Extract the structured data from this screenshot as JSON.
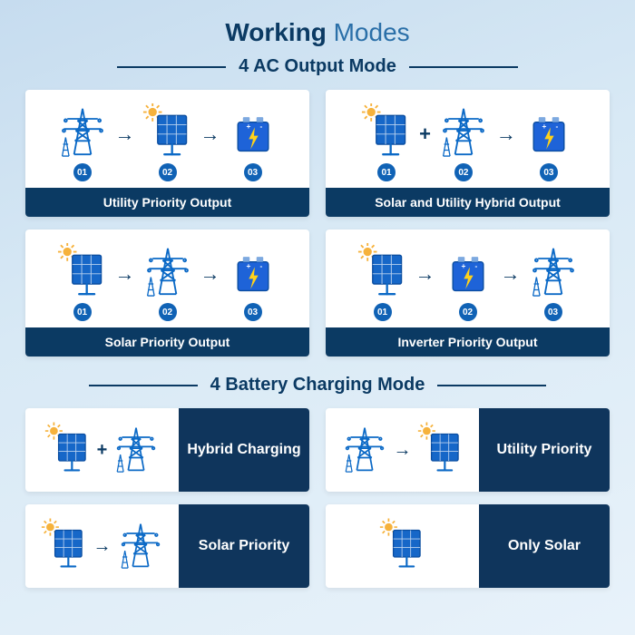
{
  "colors": {
    "title_dark": "#0b3a63",
    "title_light": "#2a6fa8",
    "section_text": "#0b3a63",
    "line": "#0b3a63",
    "card_footer_bg": "#0b3a63",
    "badge_bg": "#1062b5",
    "arrow": "#0b3a63",
    "plus": "#0b3a63",
    "charging_right_bg": "#0f355c",
    "icon_stroke": "#0b69c6",
    "panel_fill": "#1667c8",
    "battery_fill": "#1e63d8",
    "bolt": "#ffd21a",
    "sun": "#f6b23c"
  },
  "title": {
    "bold": "Working",
    "thin": " Modes"
  },
  "section_ac": "4 AC Output Mode",
  "section_batt": "4 Battery Charging Mode",
  "ac_cards": [
    {
      "label": "Utility Priority Output",
      "items": [
        {
          "icon": "grid",
          "badge": "01",
          "conn_after": "arrow"
        },
        {
          "icon": "panel",
          "badge": "02",
          "conn_after": "arrow"
        },
        {
          "icon": "battery",
          "badge": "03"
        }
      ]
    },
    {
      "label": "Solar and Utility Hybrid Output",
      "items": [
        {
          "icon": "panel",
          "badge": "01",
          "conn_after": "plus"
        },
        {
          "icon": "grid",
          "badge": "02",
          "conn_after": "arrow"
        },
        {
          "icon": "battery",
          "badge": "03"
        }
      ]
    },
    {
      "label": "Solar Priority Output",
      "items": [
        {
          "icon": "panel",
          "badge": "01",
          "conn_after": "arrow"
        },
        {
          "icon": "grid",
          "badge": "02",
          "conn_after": "arrow"
        },
        {
          "icon": "battery",
          "badge": "03"
        }
      ]
    },
    {
      "label": "Inverter Priority Output",
      "items": [
        {
          "icon": "panel",
          "badge": "01",
          "conn_after": "arrow"
        },
        {
          "icon": "battery",
          "badge": "02",
          "conn_after": "arrow"
        },
        {
          "icon": "grid",
          "badge": "03"
        }
      ]
    }
  ],
  "charging_cards": [
    {
      "label": "Hybrid Charging",
      "items": [
        {
          "icon": "panel",
          "conn_after": "plus"
        },
        {
          "icon": "grid"
        }
      ]
    },
    {
      "label": "Utility Priority",
      "items": [
        {
          "icon": "grid",
          "conn_after": "arrow"
        },
        {
          "icon": "panel"
        }
      ]
    },
    {
      "label": "Solar Priority",
      "items": [
        {
          "icon": "panel",
          "conn_after": "arrow"
        },
        {
          "icon": "grid"
        }
      ]
    },
    {
      "label": "Only Solar",
      "items": [
        {
          "icon": "panel"
        }
      ]
    }
  ]
}
